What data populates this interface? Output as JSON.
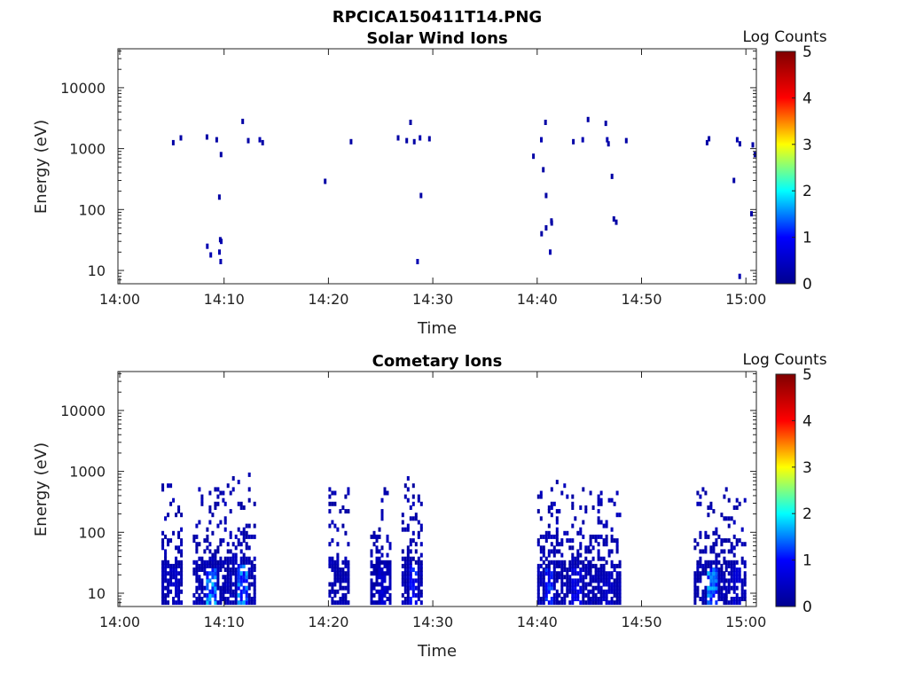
{
  "figure": {
    "filename": "RPCICA150411T14.PNG"
  },
  "colormap": {
    "name": "jet",
    "stops": [
      "#00008f",
      "#0000ff",
      "#00ffff",
      "#ffff00",
      "#ff0000",
      "#800000"
    ]
  },
  "chart_data": [
    {
      "type": "heatmap",
      "title": "Solar Wind Ions",
      "xlabel": "Time",
      "ylabel": "Energy (eV)",
      "yscale": "log",
      "ylim": [
        6,
        45000
      ],
      "xlim_minutes": [
        0,
        61
      ],
      "xticks": [
        "14:00",
        "14:10",
        "14:20",
        "14:30",
        "14:40",
        "14:50",
        "15:00"
      ],
      "yticks": [
        "10",
        "100",
        "1000",
        "10000"
      ],
      "colorbar": {
        "label": "Log Counts",
        "range": [
          0,
          5
        ],
        "ticks": [
          "0",
          "1",
          "2",
          "3",
          "4",
          "5"
        ]
      },
      "cells": [
        {
          "t": "14:05",
          "e": 1250,
          "v": 0.2
        },
        {
          "t": "14:05",
          "e": 1500,
          "v": 0.2
        },
        {
          "t": "14:08",
          "e": 1550,
          "v": 0.2
        },
        {
          "t": "14:09",
          "e": 1400,
          "v": 0.2
        },
        {
          "t": "14:09",
          "e": 800,
          "v": 0.2
        },
        {
          "t": "14:09",
          "e": 160,
          "v": 0.2
        },
        {
          "t": "14:08",
          "e": 25,
          "v": 0.3
        },
        {
          "t": "14:08",
          "e": 18,
          "v": 0.3
        },
        {
          "t": "14:09",
          "e": 30,
          "v": 0.3
        },
        {
          "t": "14:09",
          "e": 20,
          "v": 0.3
        },
        {
          "t": "14:09",
          "e": 14,
          "v": 0.3
        },
        {
          "t": "14:09",
          "e": 32,
          "v": 0.2
        },
        {
          "t": "14:11",
          "e": 2800,
          "v": 0.2
        },
        {
          "t": "14:12",
          "e": 1350,
          "v": 0.2
        },
        {
          "t": "14:13",
          "e": 1400,
          "v": 0.3
        },
        {
          "t": "14:13",
          "e": 1250,
          "v": 0.2
        },
        {
          "t": "14:19",
          "e": 290,
          "v": 0.2
        },
        {
          "t": "14:22",
          "e": 1300,
          "v": 0.2
        },
        {
          "t": "14:26",
          "e": 1500,
          "v": 0.2
        },
        {
          "t": "14:27",
          "e": 1350,
          "v": 0.2
        },
        {
          "t": "14:27",
          "e": 2700,
          "v": 0.2
        },
        {
          "t": "14:28",
          "e": 1500,
          "v": 0.3
        },
        {
          "t": "14:28",
          "e": 1300,
          "v": 0.2
        },
        {
          "t": "14:28",
          "e": 14,
          "v": 0.3
        },
        {
          "t": "14:28",
          "e": 170,
          "v": 0.2
        },
        {
          "t": "14:29",
          "e": 1450,
          "v": 0.2
        },
        {
          "t": "14:39",
          "e": 750,
          "v": 0.2
        },
        {
          "t": "14:40",
          "e": 450,
          "v": 0.2
        },
        {
          "t": "14:40",
          "e": 170,
          "v": 0.2
        },
        {
          "t": "14:40",
          "e": 50,
          "v": 0.2
        },
        {
          "t": "14:40",
          "e": 40,
          "v": 0.2
        },
        {
          "t": "14:40",
          "e": 1400,
          "v": 0.3
        },
        {
          "t": "14:40",
          "e": 2700,
          "v": 0.2
        },
        {
          "t": "14:41",
          "e": 60,
          "v": 0.2
        },
        {
          "t": "14:41",
          "e": 20,
          "v": 0.3
        },
        {
          "t": "14:41",
          "e": 65,
          "v": 0.2
        },
        {
          "t": "14:43",
          "e": 1300,
          "v": 0.2
        },
        {
          "t": "14:44",
          "e": 1400,
          "v": 0.3
        },
        {
          "t": "14:44",
          "e": 3000,
          "v": 0.2
        },
        {
          "t": "14:46",
          "e": 2600,
          "v": 0.2
        },
        {
          "t": "14:46",
          "e": 1400,
          "v": 0.3
        },
        {
          "t": "14:46",
          "e": 1200,
          "v": 0.2
        },
        {
          "t": "14:47",
          "e": 350,
          "v": 0.2
        },
        {
          "t": "14:47",
          "e": 70,
          "v": 0.2
        },
        {
          "t": "14:47",
          "e": 62,
          "v": 0.2
        },
        {
          "t": "14:48",
          "e": 1350,
          "v": 0.2
        },
        {
          "t": "14:56",
          "e": 1450,
          "v": 0.2
        },
        {
          "t": "14:56",
          "e": 1250,
          "v": 0.2
        },
        {
          "t": "14:58",
          "e": 300,
          "v": 0.2
        },
        {
          "t": "14:59",
          "e": 1400,
          "v": 0.3
        },
        {
          "t": "14:59",
          "e": 1200,
          "v": 0.2
        },
        {
          "t": "14:59",
          "e": 8,
          "v": 0.3
        },
        {
          "t": "15:00",
          "e": 1150,
          "v": 0.2
        },
        {
          "t": "15:00",
          "e": 800,
          "v": 0.2
        },
        {
          "t": "15:00",
          "e": 85,
          "v": 0.2
        }
      ]
    },
    {
      "type": "heatmap",
      "title": "Cometary Ions",
      "xlabel": "Time",
      "ylabel": "Energy (eV)",
      "yscale": "log",
      "ylim": [
        6,
        45000
      ],
      "xlim_minutes": [
        0,
        61
      ],
      "xticks": [
        "14:00",
        "14:10",
        "14:20",
        "14:30",
        "14:40",
        "14:50",
        "15:00"
      ],
      "yticks": [
        "10",
        "100",
        "1000",
        "10000"
      ],
      "colorbar": {
        "label": "Log Counts",
        "range": [
          0,
          5
        ],
        "ticks": [
          "0",
          "1",
          "2",
          "3",
          "4",
          "5"
        ]
      },
      "bursts": [
        {
          "start": "14:04",
          "end": "14:06",
          "emin": 7,
          "emax": 600,
          "vmax": 0.6
        },
        {
          "start": "14:07",
          "end": "14:10",
          "emin": 7,
          "emax": 550,
          "vmax": 1.8
        },
        {
          "start": "14:10",
          "end": "14:13",
          "emin": 7,
          "emax": 1000,
          "vmax": 1.7
        },
        {
          "start": "14:20",
          "end": "14:22",
          "emin": 7,
          "emax": 550,
          "vmax": 0.4
        },
        {
          "start": "14:24",
          "end": "14:26",
          "emin": 7,
          "emax": 550,
          "vmax": 0.7
        },
        {
          "start": "14:27",
          "end": "14:29",
          "emin": 7,
          "emax": 900,
          "vmax": 1.2
        },
        {
          "start": "14:40",
          "end": "14:42",
          "emin": 7,
          "emax": 700,
          "vmax": 1.4
        },
        {
          "start": "14:42",
          "end": "14:45",
          "emin": 7,
          "emax": 600,
          "vmax": 0.9
        },
        {
          "start": "14:45",
          "end": "14:48",
          "emin": 7,
          "emax": 500,
          "vmax": 0.6
        },
        {
          "start": "14:55",
          "end": "14:58",
          "emin": 7,
          "emax": 650,
          "vmax": 1.8
        },
        {
          "start": "14:58",
          "end": "15:00",
          "emin": 7,
          "emax": 550,
          "vmax": 0.7
        }
      ]
    }
  ]
}
